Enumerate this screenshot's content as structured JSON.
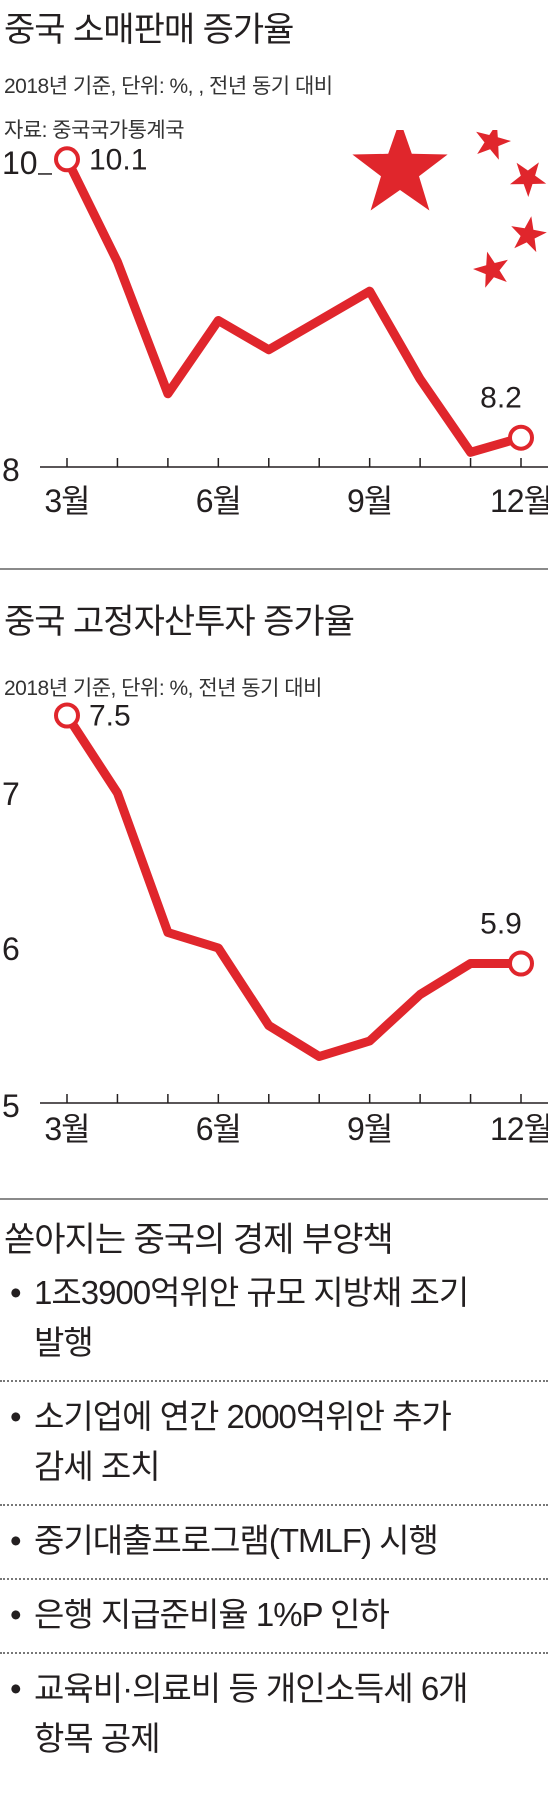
{
  "charts": [
    {
      "title": "중국 소매판매 증가율",
      "subtitle": "2018년 기준, 단위: %, , 전년 동기 대비",
      "source": "자료: 중국국가통계국",
      "colors": {
        "line": "#e0262c",
        "marker_fill": "#ffffff",
        "star": "#e0262c",
        "axis": "#231f20"
      },
      "icon": "chinese-flag-stars-icon"
    },
    {
      "title": "중국 고정자산투자 증가율",
      "subtitle": "2018년 기준, 단위: %, 전년 동기 대비",
      "colors": {
        "line": "#e0262c",
        "marker_fill": "#ffffff",
        "axis": "#231f20"
      }
    }
  ],
  "chart_data": [
    {
      "type": "line",
      "title": "중국 소매판매 증가율",
      "x": [
        3,
        4,
        5,
        6,
        7,
        8,
        9,
        10,
        11,
        12
      ],
      "x_tick_labels": [
        "3월",
        "6월",
        "9월",
        "12월"
      ],
      "x_tick_values": [
        3,
        6,
        9,
        12
      ],
      "series": [
        {
          "values": [
            10.1,
            9.4,
            8.5,
            9.0,
            8.8,
            9.0,
            9.2,
            8.6,
            8.1,
            8.2
          ]
        }
      ],
      "y_tick_labels": [
        "10",
        "8"
      ],
      "y_tick_values": [
        10,
        8
      ],
      "ylim": [
        8,
        10.3
      ],
      "annotations": [
        {
          "x": 3,
          "y": 10.1,
          "label": "10.1"
        },
        {
          "x": 12,
          "y": 8.2,
          "label": "8.2"
        }
      ],
      "grid": false
    },
    {
      "type": "line",
      "title": "중국 고정자산투자 증가율",
      "x": [
        3,
        4,
        5,
        6,
        7,
        8,
        9,
        10,
        11,
        12
      ],
      "x_tick_labels": [
        "3월",
        "6월",
        "9월",
        "12월"
      ],
      "x_tick_values": [
        3,
        6,
        9,
        12
      ],
      "series": [
        {
          "values": [
            7.5,
            7.0,
            6.1,
            6.0,
            5.5,
            5.3,
            5.4,
            5.7,
            5.9,
            5.9
          ]
        }
      ],
      "y_tick_labels": [
        "7",
        "6",
        "5"
      ],
      "y_tick_values": [
        7,
        6,
        5
      ],
      "ylim": [
        5,
        7.6
      ],
      "annotations": [
        {
          "x": 3,
          "y": 7.5,
          "label": "7.5"
        },
        {
          "x": 12,
          "y": 5.9,
          "label": "5.9"
        }
      ],
      "grid": false
    }
  ],
  "measures": {
    "title": "쏟아지는 중국의 경제 부양책",
    "bullet": "•",
    "items": [
      {
        "line1": "1조3900억위안 규모 지방채 조기",
        "line2": "발행"
      },
      {
        "line1": "소기업에 연간 2000억위안 추가",
        "line2": "감세 조치"
      },
      {
        "line1": "중기대출프로그램(TMLF) 시행",
        "line2": ""
      },
      {
        "line1": "은행 지급준비율 1%P 인하",
        "line2": ""
      },
      {
        "line1": "교육비·의료비 등 개인소득세 6개",
        "line2": "항목 공제"
      }
    ]
  }
}
